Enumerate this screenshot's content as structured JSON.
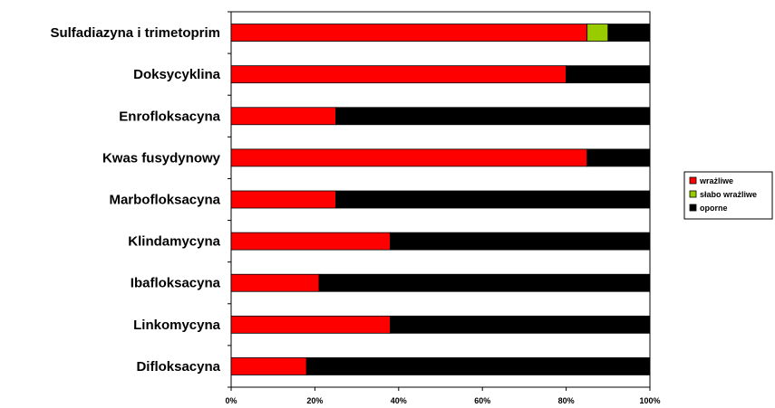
{
  "chart_data": {
    "type": "bar",
    "orientation": "horizontal",
    "stacked": "percent",
    "categories": [
      "Sulfadiazyna i trimetoprim",
      "Doksycyklina",
      "Enrofloksacyna",
      "Kwas fusydynowy",
      "Marbofloksacyna",
      "Klindamycyna",
      "Ibafloksacyna",
      "Linkomycyna",
      "Difloksacyna"
    ],
    "series": [
      {
        "name": "wrażliwe",
        "color": "#ff0000",
        "values": [
          85,
          80,
          25,
          85,
          25,
          38,
          21,
          38,
          18
        ]
      },
      {
        "name": "słabo wrażliwe",
        "color": "#99cc00",
        "values": [
          5,
          0,
          0,
          0,
          0,
          0,
          0,
          0,
          0
        ]
      },
      {
        "name": "oporne",
        "color": "#000000",
        "values": [
          10,
          20,
          75,
          15,
          75,
          62,
          79,
          62,
          82
        ]
      }
    ],
    "x_ticks": [
      "0%",
      "20%",
      "40%",
      "60%",
      "80%",
      "100%"
    ],
    "xlim": [
      0,
      100
    ],
    "grid": false,
    "legend_position": "right"
  }
}
